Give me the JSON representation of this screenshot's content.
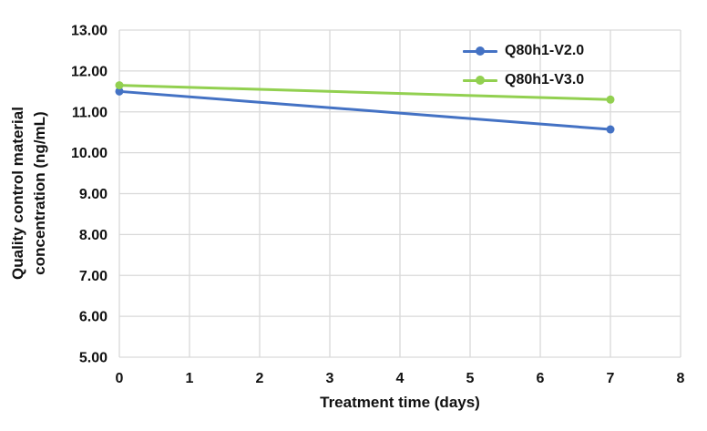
{
  "chart_data": {
    "type": "line",
    "title": "",
    "xlabel": "Treatment time (days)",
    "ylabel_lines": [
      "Quality control material",
      "concentration (ng/mL)"
    ],
    "xlim": [
      0,
      8
    ],
    "ylim": [
      5,
      13
    ],
    "x_tick_values": [
      0,
      1,
      2,
      3,
      4,
      5,
      6,
      7,
      8
    ],
    "x_tick_labels": [
      "0",
      "1",
      "2",
      "3",
      "4",
      "5",
      "6",
      "7",
      "8"
    ],
    "y_tick_values": [
      5,
      6,
      7,
      8,
      9,
      10,
      11,
      12,
      13
    ],
    "y_tick_labels": [
      "5.00",
      "6.00",
      "7.00",
      "8.00",
      "9.00",
      "10.00",
      "11.00",
      "12.00",
      "13.00"
    ],
    "grid": true,
    "grid_color": "#d9d9d9",
    "background_color": "#ffffff",
    "legend_position": "inside-top-right",
    "series": [
      {
        "name": "Q80h1-V2.0",
        "color": "#4472c4",
        "x": [
          0,
          7
        ],
        "y": [
          11.5,
          10.57
        ]
      },
      {
        "name": "Q80h1-V3.0",
        "color": "#92d050",
        "x": [
          0,
          7
        ],
        "y": [
          11.65,
          11.3
        ]
      }
    ]
  }
}
